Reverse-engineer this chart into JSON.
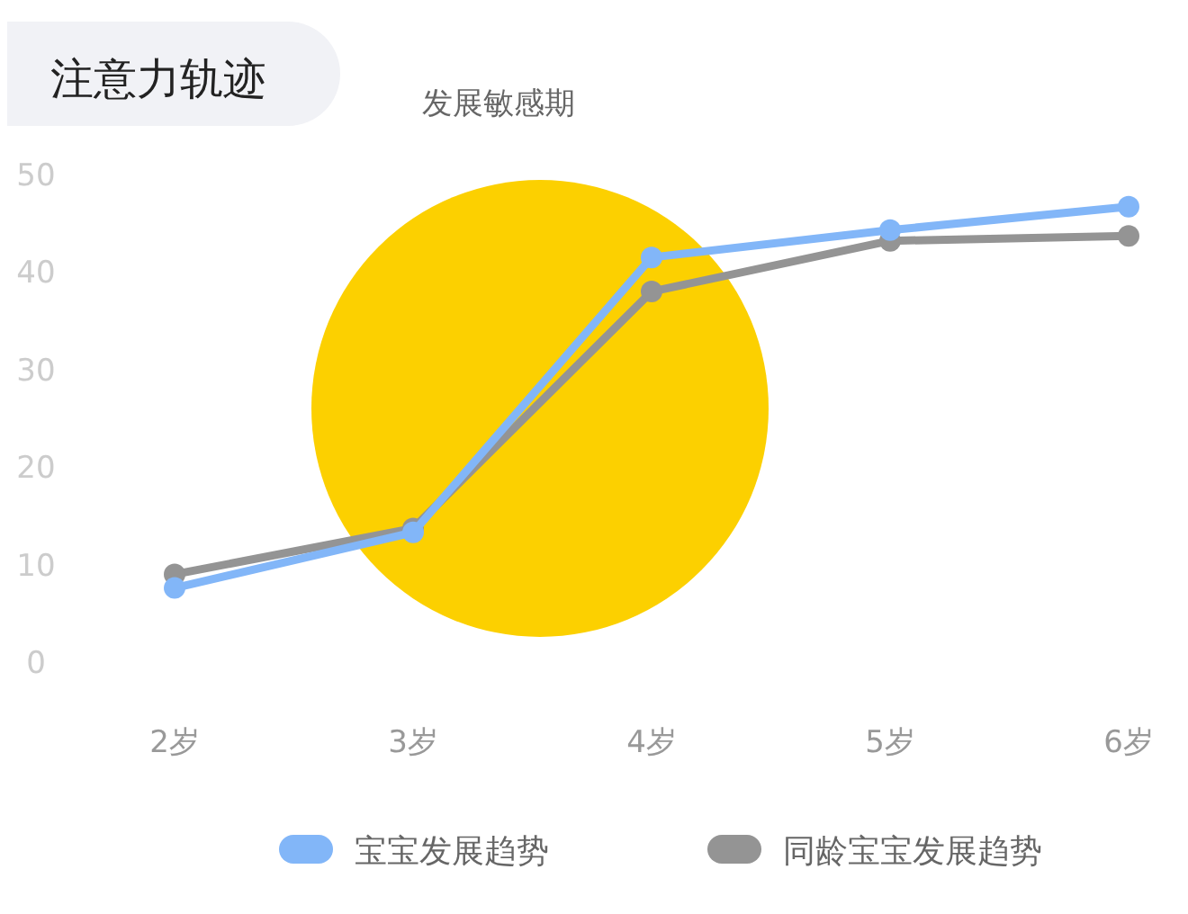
{
  "chart_data": {
    "type": "line",
    "title": "注意力轨迹",
    "annotations": [
      "发展敏感期"
    ],
    "categories": [
      "2岁",
      "3岁",
      "4岁",
      "5岁",
      "6岁"
    ],
    "series": [
      {
        "name": "宝宝发展趋势",
        "color": "#82b6f8",
        "values": [
          7.6,
          13.3,
          41.5,
          44.3,
          46.7
        ]
      },
      {
        "name": "同龄宝宝发展趋势",
        "color": "#949494",
        "values": [
          9.0,
          13.7,
          38.0,
          43.2,
          43.7
        ]
      }
    ],
    "ylim": [
      0,
      50
    ],
    "yticks": [
      0,
      10,
      20,
      30,
      40,
      50
    ],
    "marker": "circle",
    "legend": "bottom",
    "grid": false
  }
}
